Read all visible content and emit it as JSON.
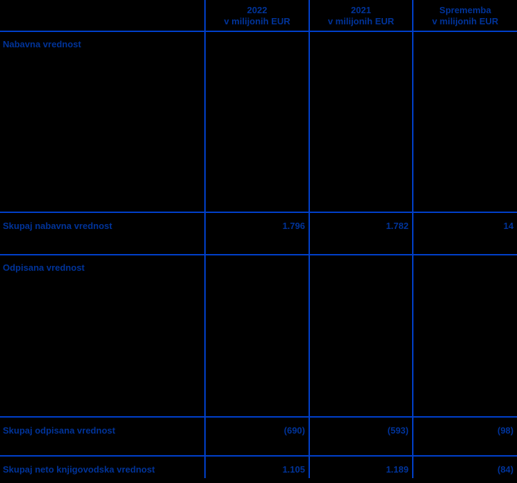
{
  "colors": {
    "bg": "#000000",
    "text": "#003399",
    "grid": "#0040cc"
  },
  "table": {
    "header": {
      "col_2022_line1": "2022",
      "col_2022_line2": "v milijonih EUR",
      "col_2021_line1": "2021",
      "col_2021_line2": "v milijonih EUR",
      "col_change_line1": "Sprememba",
      "col_change_line2": "v milijonih EUR"
    },
    "rows": [
      {
        "type": "section",
        "label": "Nabavna vrednost",
        "values": [
          "",
          "",
          ""
        ]
      },
      {
        "type": "total",
        "label": "Skupaj nabavna vrednost",
        "values": [
          "1.796",
          "1.782",
          "14"
        ]
      },
      {
        "type": "section",
        "label": "Odpisana vrednost",
        "values": [
          "",
          "",
          ""
        ]
      },
      {
        "type": "total",
        "label": "Skupaj odpisana vrednost",
        "values": [
          "(690)",
          "(593)",
          "(98)"
        ]
      },
      {
        "type": "total",
        "label": "Skupaj neto knjigovodska vrednost",
        "values": [
          "1.105",
          "1.189",
          "(84)"
        ]
      }
    ]
  }
}
